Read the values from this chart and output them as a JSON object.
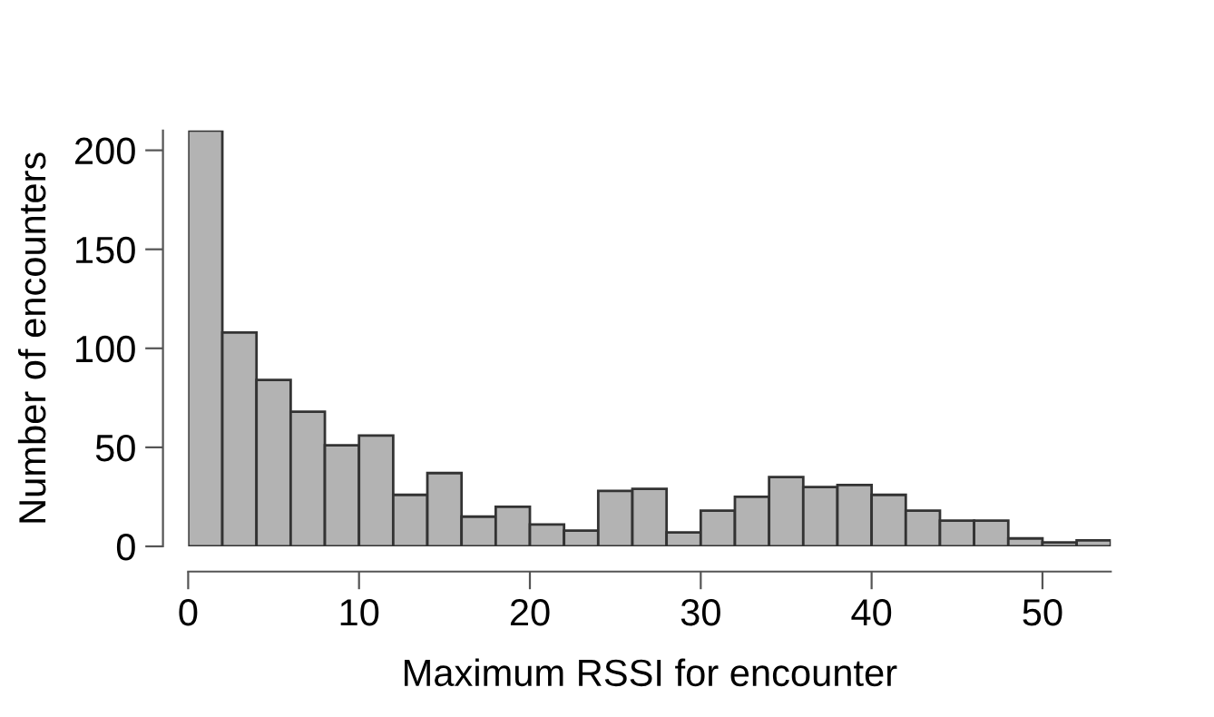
{
  "chart_data": {
    "type": "histogram",
    "xlabel": "Maximum RSSI for encounter",
    "ylabel": "Number of encounters",
    "bins": [
      0,
      2,
      4,
      6,
      8,
      10,
      12,
      14,
      16,
      18,
      20,
      22,
      24,
      26,
      28,
      30,
      32,
      34,
      36,
      38,
      40,
      42,
      44,
      46,
      48,
      50,
      52,
      54
    ],
    "values": [
      210,
      108,
      84,
      68,
      51,
      56,
      26,
      37,
      15,
      20,
      11,
      8,
      28,
      29,
      7,
      18,
      25,
      35,
      30,
      31,
      26,
      18,
      13,
      13,
      4,
      2,
      3
    ],
    "color": "#b3b3b3",
    "xlim": [
      0,
      54
    ],
    "ylim": [
      0,
      210
    ],
    "xticks": [
      0,
      10,
      20,
      30,
      40,
      50
    ],
    "yticks": [
      0,
      50,
      100,
      150,
      200
    ],
    "grid": false
  }
}
